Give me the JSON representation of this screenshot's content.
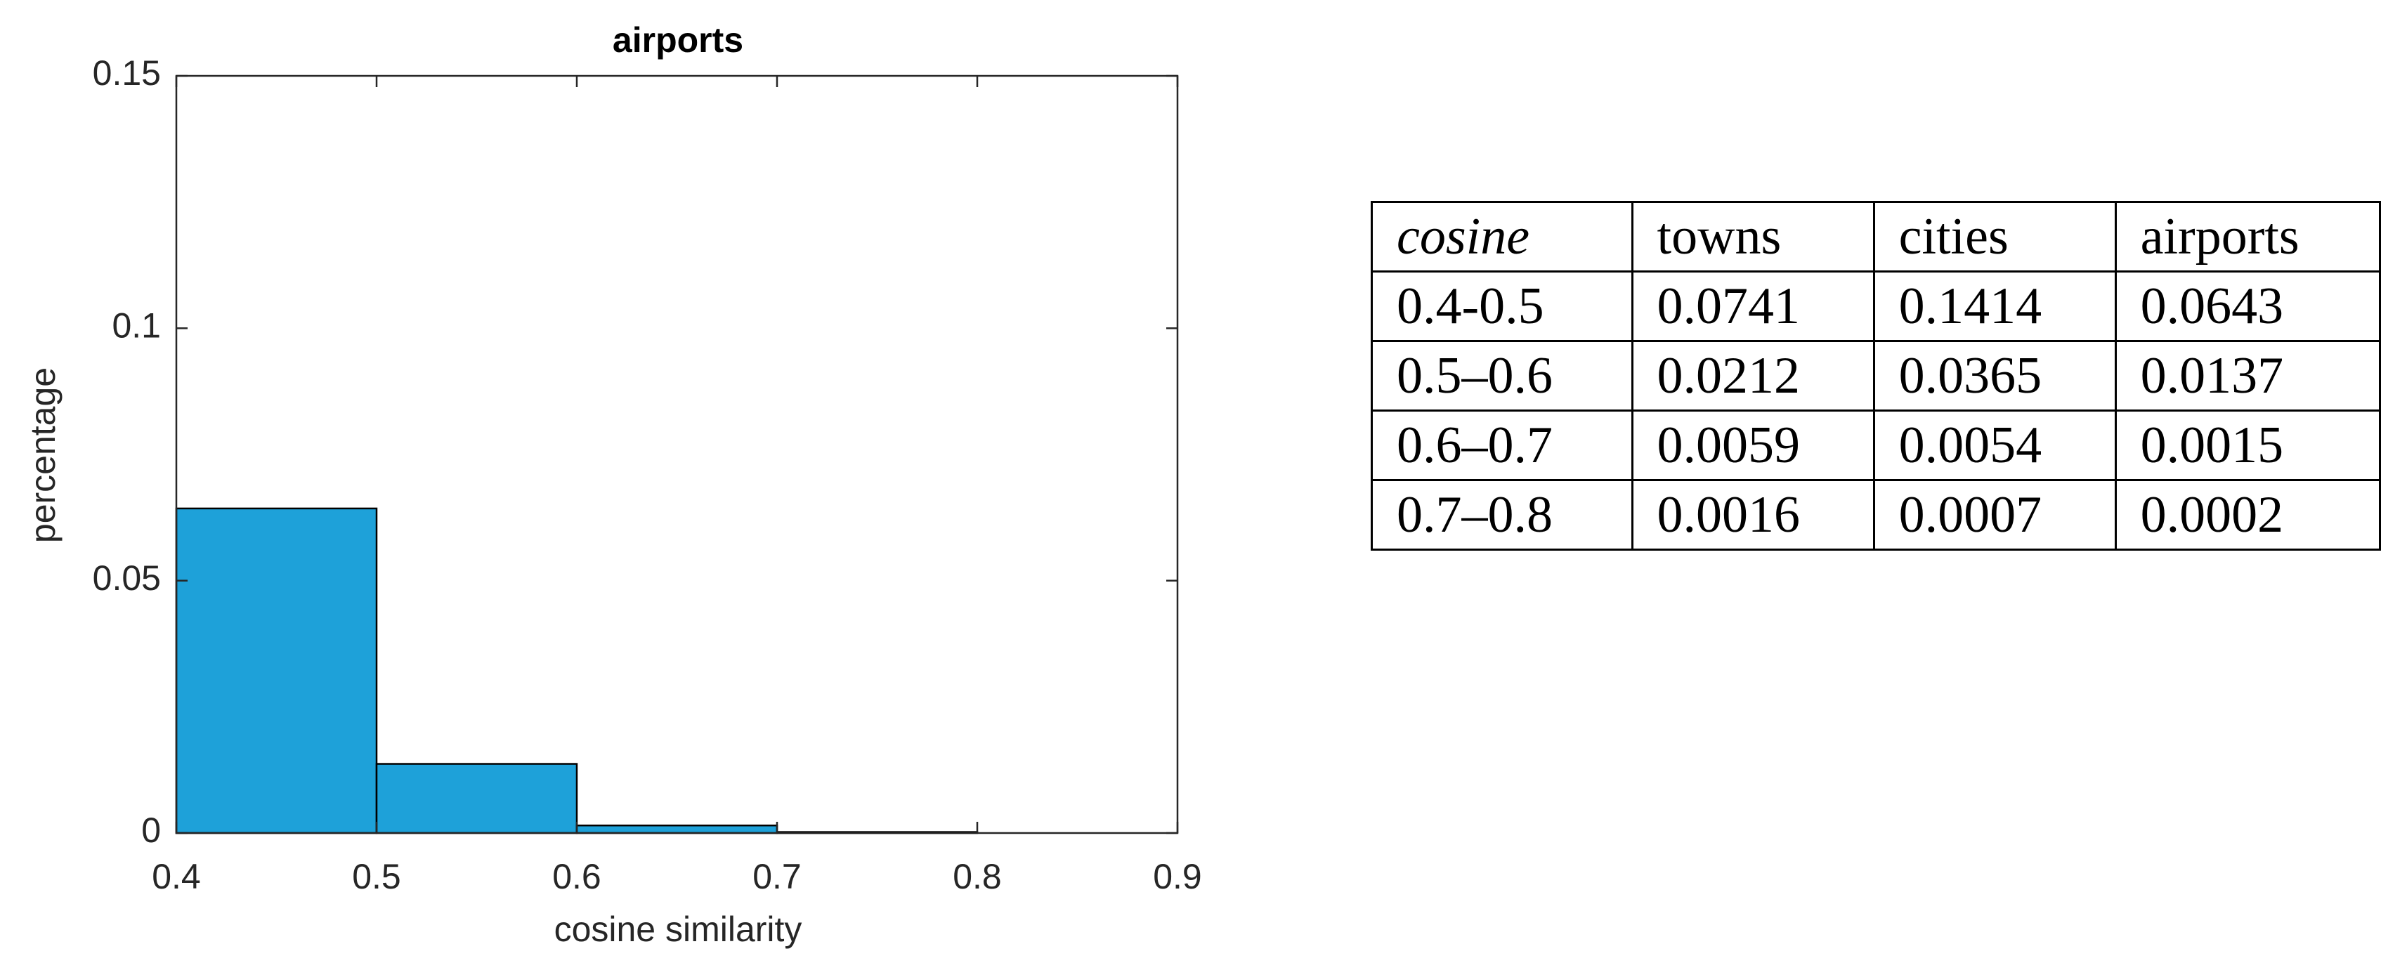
{
  "chart_data": {
    "type": "histogram",
    "title": "airports",
    "xlabel": "cosine similarity",
    "ylabel": "percentage",
    "bins": [
      0.4,
      0.5,
      0.6,
      0.7,
      0.8
    ],
    "counts": [
      0.0643,
      0.0137,
      0.0015,
      0.0002
    ],
    "color": "#1ea1d9",
    "xlim": [
      0.4,
      0.9
    ],
    "xticks": [
      0.4,
      0.5,
      0.6,
      0.7,
      0.8,
      0.9
    ],
    "ylim": [
      0,
      0.15
    ],
    "yticks": [
      0,
      0.05,
      0.1,
      0.15
    ],
    "grid": false
  },
  "table": {
    "header": [
      "cosine",
      "towns",
      "cities",
      "airports"
    ],
    "rows": [
      [
        "0.4-0.5",
        "0.0741",
        "0.1414",
        "0.0643"
      ],
      [
        "0.5–0.6",
        "0.0212",
        "0.0365",
        "0.0137"
      ],
      [
        "0.6–0.7",
        "0.0059",
        "0.0054",
        "0.0015"
      ],
      [
        "0.7–0.8",
        "0.0016",
        "0.0007",
        "0.0002"
      ]
    ]
  }
}
